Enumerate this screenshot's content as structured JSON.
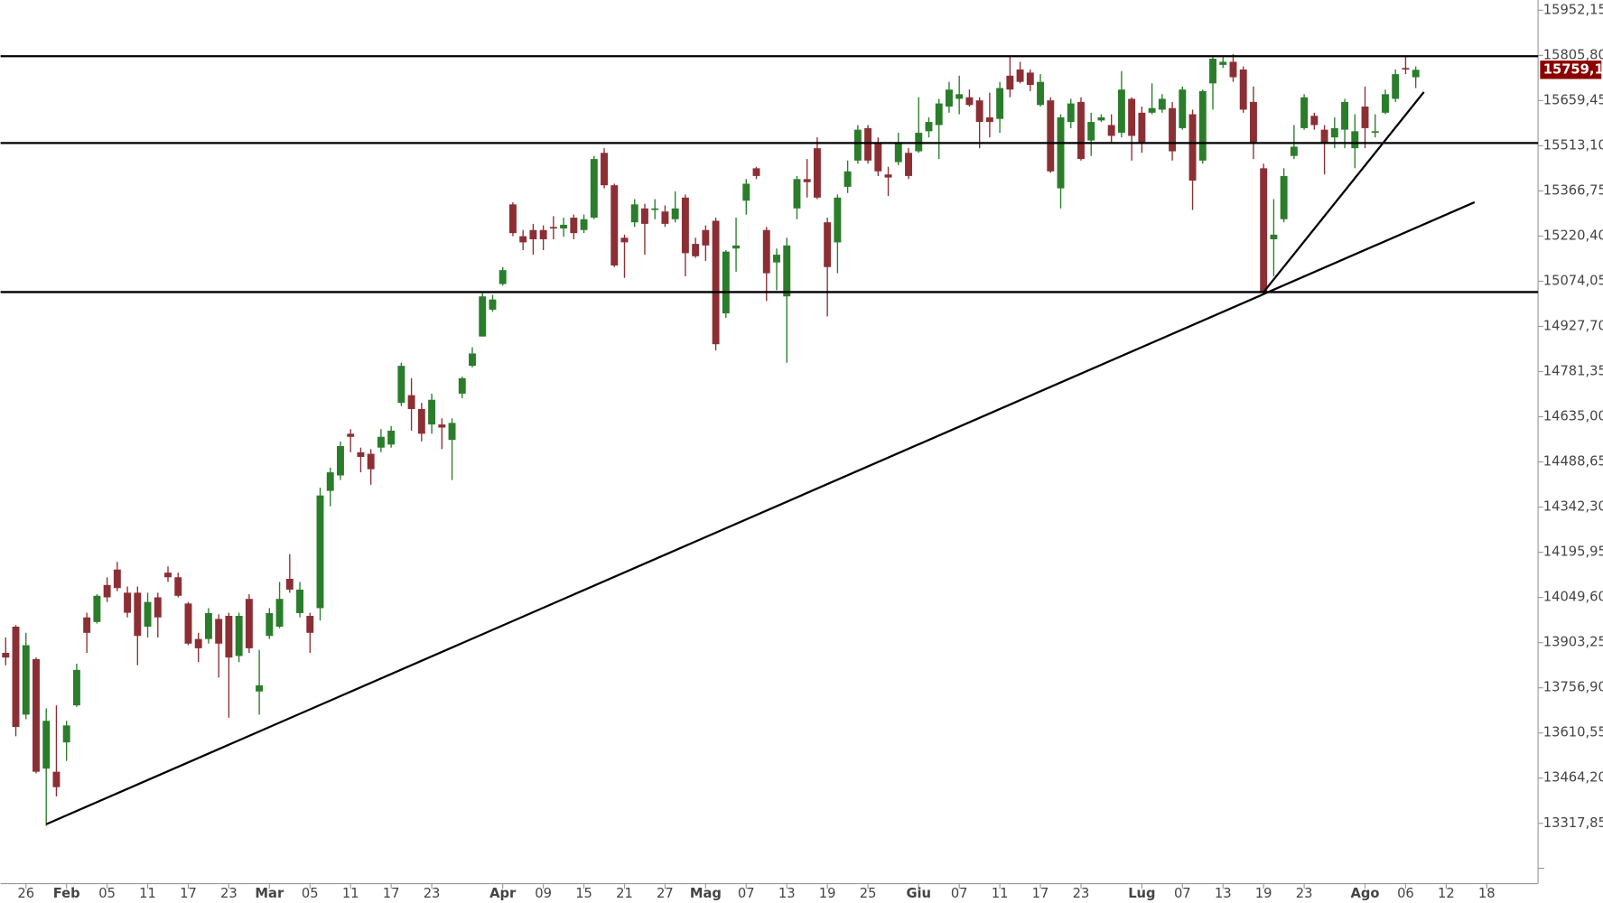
{
  "chart_data": {
    "type": "candlestick",
    "colors": {
      "up": "#2a7d2a",
      "down": "#8c2f35",
      "levels": "#000000",
      "trend": "#000000",
      "last_price": "#8b0000"
    },
    "ylim": [
      13122.6,
      15985.2
    ],
    "yticks": [
      {
        "value": 15952.15,
        "label": "15952,15"
      },
      {
        "value": 15805.8,
        "label": "15805,80"
      },
      {
        "value": 15659.45,
        "label": "15659,45"
      },
      {
        "value": 15513.1,
        "label": "15513,10"
      },
      {
        "value": 15366.75,
        "label": "15366,75"
      },
      {
        "value": 15220.4,
        "label": "15220,40"
      },
      {
        "value": 15074.05,
        "label": "15074,05"
      },
      {
        "value": 14927.7,
        "label": "14927,70"
      },
      {
        "value": 14781.35,
        "label": "14781,35"
      },
      {
        "value": 14635,
        "label": "14635,00"
      },
      {
        "value": 14488.65,
        "label": "14488,65"
      },
      {
        "value": 14342.3,
        "label": "14342,30"
      },
      {
        "value": 14195.95,
        "label": "14195,95"
      },
      {
        "value": 14049.6,
        "label": "14049,60"
      },
      {
        "value": 13903.25,
        "label": "13903,25"
      },
      {
        "value": 13756.9,
        "label": "13756,90"
      },
      {
        "value": 13610.55,
        "label": "13610,55"
      },
      {
        "value": 13464.2,
        "label": "13464,20"
      },
      {
        "value": 13317.85,
        "label": "13317,85"
      }
    ],
    "last_price": {
      "value": 15759.1,
      "label": "15759,10"
    },
    "levels": [
      15803,
      15522,
      15039
    ],
    "trend_lines": [
      {
        "start": [
          4,
          13315
        ],
        "end": [
          144.8,
          15330
        ]
      },
      {
        "start": [
          124,
          15039
        ],
        "end": [
          139.8,
          15687
        ]
      }
    ],
    "categories": [
      null,
      null,
      "26",
      null,
      null,
      null,
      "Feb",
      null,
      null,
      null,
      "05",
      null,
      null,
      null,
      "11",
      null,
      null,
      null,
      "17",
      null,
      null,
      null,
      "23",
      null,
      null,
      null,
      "Mar",
      null,
      null,
      null,
      "05",
      null,
      null,
      null,
      "11",
      null,
      null,
      null,
      "17",
      null,
      null,
      null,
      "23",
      null,
      null,
      null,
      null,
      null,
      null,
      "Apr",
      null,
      null,
      null,
      "09",
      null,
      null,
      null,
      "15",
      null,
      null,
      null,
      "21",
      null,
      null,
      null,
      "27",
      null,
      null,
      null,
      "Mag",
      null,
      null,
      null,
      "07",
      null,
      null,
      null,
      "13",
      null,
      null,
      null,
      "19",
      null,
      null,
      null,
      "25",
      null,
      null,
      null,
      null,
      "Giu",
      null,
      null,
      null,
      "07",
      null,
      null,
      null,
      "11",
      null,
      null,
      null,
      "17",
      null,
      null,
      null,
      "23",
      null,
      null,
      null,
      null,
      null,
      "Lug",
      null,
      null,
      null,
      "07",
      null,
      null,
      null,
      "13",
      null,
      null,
      null,
      "19",
      null,
      null,
      null,
      "23",
      null,
      null,
      null,
      null,
      null,
      "Ago",
      null,
      null,
      null,
      "06",
      null,
      null,
      null,
      "12",
      null,
      null,
      null,
      "18"
    ],
    "open": [
      13870,
      13955,
      13670,
      13850,
      13495,
      13485,
      13580,
      13700,
      13985,
      13970,
      14090,
      14140,
      14065,
      14065,
      13955,
      14050,
      14130,
      14115,
      14030,
      13915,
      13915,
      13980,
      13990,
      13860,
      14045,
      13745,
      13925,
      13955,
      14110,
      13999,
      13990,
      14015,
      14395,
      14445,
      14580,
      14520,
      14515,
      14535,
      14545,
      14680,
      14705,
      14660,
      14610,
      14610,
      14560,
      14710,
      14800,
      14895,
      14982,
      15065,
      15323,
      15220,
      15240,
      15240,
      15250,
      15245,
      15280,
      15240,
      15280,
      15490,
      15385,
      15215,
      15265,
      15310,
      15305,
      15300,
      15275,
      15345,
      15195,
      15240,
      15270,
      14970,
      15180,
      15335,
      15440,
      15240,
      15135,
      15025,
      15310,
      15405,
      15505,
      15265,
      15200,
      15380,
      15465,
      15570,
      15520,
      15420,
      15460,
      15490,
      15495,
      15560,
      15580,
      15640,
      15665,
      15670,
      15660,
      15605,
      15600,
      15740,
      15760,
      15750,
      15645,
      15660,
      15375,
      15590,
      15655,
      15530,
      15595,
      15580,
      15555,
      15665,
      15620,
      15620,
      15630,
      15635,
      15570,
      15615,
      15465,
      15715,
      15775,
      15785,
      15760,
      15655,
      15440,
      15210,
      15275,
      15480,
      15570,
      15610,
      15565,
      15540,
      15565,
      15505,
      15640,
      15555,
      15620,
      15665,
      15765,
      15735,
      null,
      null,
      null,
      null,
      null,
      null,
      null
    ],
    "high": [
      13920,
      13960,
      13935,
      13855,
      13690,
      13700,
      13650,
      13835,
      14000,
      14060,
      14115,
      14165,
      14085,
      14085,
      14065,
      14065,
      14150,
      14130,
      14035,
      13935,
      14015,
      13995,
      14000,
      14000,
      14060,
      13880,
      14015,
      14100,
      14190,
      14100,
      14000,
      14405,
      14470,
      14555,
      14595,
      14535,
      14530,
      14595,
      14605,
      14810,
      14760,
      14680,
      14710,
      14630,
      14630,
      14765,
      14860,
      15035,
      15030,
      15120,
      15330,
      15240,
      15260,
      15255,
      15285,
      15280,
      15290,
      15290,
      15480,
      15505,
      15390,
      15225,
      15340,
      15325,
      15340,
      15320,
      15365,
      15355,
      15215,
      15255,
      15280,
      15175,
      15280,
      15405,
      15445,
      15250,
      15180,
      15215,
      15415,
      15470,
      15540,
      15280,
      15355,
      15465,
      15580,
      15580,
      15540,
      15445,
      15555,
      15505,
      15670,
      15605,
      15665,
      15720,
      15740,
      15695,
      15670,
      15685,
      15720,
      15805,
      15785,
      15760,
      15745,
      15670,
      15615,
      15665,
      15670,
      15620,
      15615,
      15615,
      15755,
      15670,
      15640,
      15715,
      15680,
      15655,
      15705,
      15630,
      15695,
      15805,
      15805,
      15810,
      15770,
      15705,
      15455,
      15340,
      15440,
      15580,
      15680,
      15620,
      15580,
      15605,
      15665,
      15615,
      15705,
      15615,
      15695,
      15760,
      15805,
      15770,
      null,
      null,
      null,
      null,
      null,
      null,
      null
    ],
    "low": [
      13830,
      13600,
      13655,
      13480,
      13310,
      13405,
      13520,
      13695,
      13870,
      13965,
      14035,
      14070,
      13985,
      13830,
      13920,
      13920,
      14100,
      14050,
      13895,
      13840,
      13900,
      13790,
      13660,
      13840,
      13870,
      13670,
      13915,
      13950,
      14065,
      13985,
      13870,
      13975,
      14345,
      14430,
      14520,
      14455,
      14415,
      14520,
      14535,
      14670,
      14590,
      14555,
      14580,
      14530,
      14430,
      14695,
      14795,
      14895,
      14975,
      15060,
      15220,
      15175,
      15160,
      15175,
      15210,
      15218,
      15210,
      15230,
      15275,
      15375,
      15120,
      15085,
      15250,
      15160,
      15275,
      15250,
      15265,
      15090,
      15150,
      15140,
      14850,
      14955,
      15105,
      15290,
      15405,
      15010,
      15045,
      14810,
      15275,
      15345,
      15340,
      14960,
      15100,
      15360,
      15455,
      15455,
      15415,
      15350,
      15450,
      15405,
      15490,
      15540,
      15470,
      15620,
      15615,
      15640,
      15505,
      15540,
      15555,
      15670,
      15715,
      15690,
      15640,
      15425,
      15310,
      15570,
      15465,
      15480,
      15590,
      15520,
      15540,
      15465,
      15490,
      15615,
      15620,
      15465,
      15565,
      15305,
      15455,
      15630,
      15765,
      15720,
      15620,
      15470,
      15030,
      15090,
      15265,
      15470,
      15565,
      15565,
      15420,
      15505,
      15505,
      15440,
      15505,
      15540,
      15615,
      15655,
      15745,
      15700,
      null,
      null,
      null,
      null,
      null,
      null,
      null
    ],
    "close": [
      13855,
      13630,
      13895,
      13485,
      13650,
      13435,
      13635,
      13815,
      13935,
      14055,
      14050,
      14080,
      14000,
      13925,
      14035,
      13985,
      14115,
      14055,
      13900,
      13885,
      13999,
      13900,
      13855,
      13990,
      13885,
      13765,
      13999,
      14045,
      14075,
      14075,
      13935,
      14380,
      14455,
      14540,
      14570,
      14505,
      14465,
      14570,
      14590,
      14800,
      14660,
      14580,
      14690,
      14600,
      14615,
      14760,
      14840,
      15025,
      15015,
      15110,
      15230,
      15200,
      15210,
      15210,
      15245,
      15257,
      15230,
      15275,
      15470,
      15385,
      15125,
      15200,
      15323,
      15260,
      15310,
      15260,
      15310,
      15165,
      15155,
      15190,
      14870,
      15170,
      15190,
      15390,
      15415,
      15100,
      15160,
      15190,
      15405,
      15395,
      15345,
      15120,
      15345,
      15430,
      15565,
      15465,
      15430,
      15410,
      15520,
      15415,
      15555,
      15590,
      15650,
      15695,
      15680,
      15645,
      15590,
      15590,
      15700,
      15695,
      15720,
      15710,
      15720,
      15430,
      15605,
      15650,
      15470,
      15590,
      15605,
      15545,
      15695,
      15545,
      15520,
      15635,
      15665,
      15495,
      15695,
      15400,
      15690,
      15795,
      15785,
      15735,
      15630,
      15520,
      15040,
      15225,
      15415,
      15510,
      15670,
      15580,
      15520,
      15570,
      15655,
      15560,
      15570,
      15560,
      15680,
      15745,
      15760,
      15759.1,
      null,
      null,
      null,
      null,
      null,
      null,
      null
    ]
  }
}
